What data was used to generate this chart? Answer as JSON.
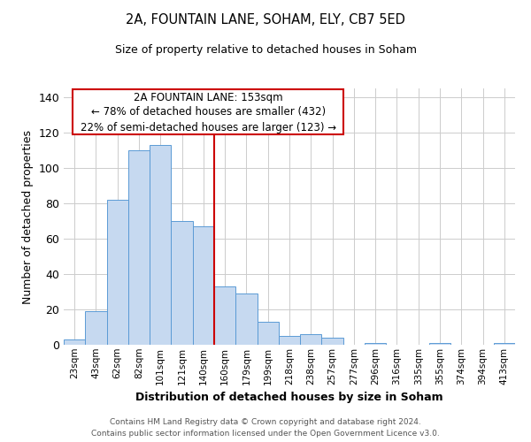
{
  "title": "2A, FOUNTAIN LANE, SOHAM, ELY, CB7 5ED",
  "subtitle": "Size of property relative to detached houses in Soham",
  "xlabel": "Distribution of detached houses by size in Soham",
  "ylabel": "Number of detached properties",
  "categories": [
    "23sqm",
    "43sqm",
    "62sqm",
    "82sqm",
    "101sqm",
    "121sqm",
    "140sqm",
    "160sqm",
    "179sqm",
    "199sqm",
    "218sqm",
    "238sqm",
    "257sqm",
    "277sqm",
    "296sqm",
    "316sqm",
    "335sqm",
    "355sqm",
    "374sqm",
    "394sqm",
    "413sqm"
  ],
  "values": [
    3,
    19,
    82,
    110,
    113,
    70,
    67,
    33,
    29,
    13,
    5,
    6,
    4,
    0,
    1,
    0,
    0,
    1,
    0,
    0,
    1
  ],
  "bar_color": "#c6d9f0",
  "bar_edge_color": "#5b9bd5",
  "ylim": [
    0,
    145
  ],
  "yticks": [
    0,
    20,
    40,
    60,
    80,
    100,
    120,
    140
  ],
  "vline_bar_index": 7,
  "vline_color": "#cc0000",
  "annotation_title": "2A FOUNTAIN LANE: 153sqm",
  "annotation_line1": "← 78% of detached houses are smaller (432)",
  "annotation_line2": "22% of semi-detached houses are larger (123) →",
  "annotation_box_color": "#cc0000",
  "footer1": "Contains HM Land Registry data © Crown copyright and database right 2024.",
  "footer2": "Contains public sector information licensed under the Open Government Licence v3.0.",
  "background_color": "#ffffff",
  "grid_color": "#cccccc"
}
